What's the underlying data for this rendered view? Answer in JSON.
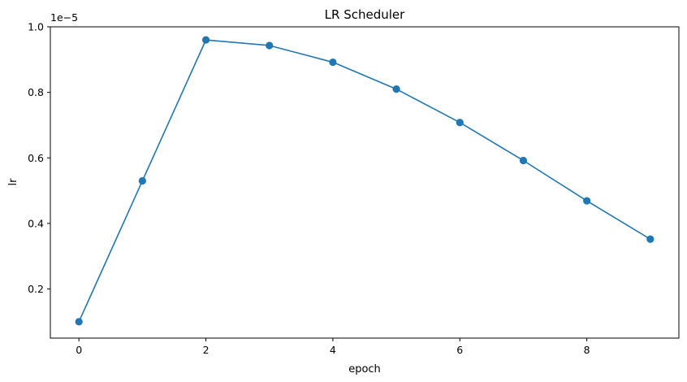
{
  "chart_data": {
    "type": "line",
    "title": "LR Scheduler",
    "xlabel": "epoch",
    "ylabel": "lr",
    "y_scale_label": "1e−5",
    "xlim": [
      -0.45,
      9.45
    ],
    "ylim": [
      0.05,
      1.0
    ],
    "x_ticks": [
      0,
      2,
      4,
      6,
      8
    ],
    "x_tick_labels": [
      "0",
      "2",
      "4",
      "6",
      "8"
    ],
    "y_ticks": [
      0.2,
      0.4,
      0.6,
      0.8,
      1.0
    ],
    "y_tick_labels": [
      "0.2",
      "0.4",
      "0.6",
      "0.8",
      "1.0"
    ],
    "grid": false,
    "line_color": "#1f77b4",
    "marker": "circle",
    "series": [
      {
        "x": [
          0,
          1,
          2,
          3,
          4,
          5,
          6,
          7,
          8,
          9
        ],
        "values": [
          0.1,
          0.53,
          0.96,
          0.943,
          0.892,
          0.81,
          0.708,
          0.592,
          0.469,
          0.352
        ]
      }
    ]
  }
}
